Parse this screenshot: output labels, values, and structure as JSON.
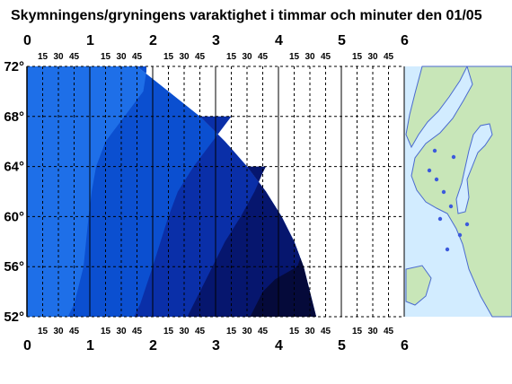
{
  "chart_data": {
    "type": "area",
    "title": "Skymningens/gryningens varaktighet i timmar och minuter den 01/05",
    "x_axis": {
      "range_hours": [
        0,
        6
      ],
      "hour_labels": [
        "0",
        "1",
        "2",
        "3",
        "4",
        "5",
        "6"
      ],
      "minute_labels": [
        "15",
        "30",
        "45"
      ]
    },
    "y_axis": {
      "range_lat": [
        52,
        72
      ],
      "labels": [
        "72°",
        "68°",
        "64°",
        "60°",
        "56°",
        "52°"
      ],
      "values": [
        72,
        68,
        64,
        60,
        56,
        52
      ]
    },
    "series": [
      {
        "color": "#1e6fe8",
        "points": [
          [
            52,
            0
          ],
          [
            53,
            0
          ],
          [
            56,
            0
          ],
          [
            60,
            0
          ],
          [
            64,
            0
          ],
          [
            68,
            0
          ],
          [
            70,
            0
          ],
          [
            72,
            0
          ]
        ]
      },
      {
        "color": "#0b4fd0",
        "points": [
          [
            52,
            0.65
          ],
          [
            53,
            0.75
          ],
          [
            56,
            0.9
          ],
          [
            60,
            0.98
          ],
          [
            62,
            1.03
          ],
          [
            64,
            1.1
          ],
          [
            66,
            1.25
          ],
          [
            68,
            1.55
          ],
          [
            70,
            1.85
          ],
          [
            71.6,
            1.9
          ],
          [
            72,
            1.9
          ]
        ]
      },
      {
        "color": "#0a2fa8",
        "points": [
          [
            52,
            1.7
          ],
          [
            53,
            1.8
          ],
          [
            56,
            2.0
          ],
          [
            60,
            2.25
          ],
          [
            62,
            2.4
          ],
          [
            64,
            2.65
          ],
          [
            66,
            2.95
          ],
          [
            67,
            3.1
          ],
          [
            68,
            3.25
          ]
        ]
      },
      {
        "color": "#06166e",
        "points": [
          [
            52,
            2.55
          ],
          [
            53,
            2.65
          ],
          [
            56,
            2.95
          ],
          [
            58,
            3.15
          ],
          [
            60,
            3.4
          ],
          [
            62,
            3.62
          ],
          [
            63.5,
            3.75
          ],
          [
            64,
            3.8
          ]
        ]
      },
      {
        "color": "#050a3a",
        "points": [
          [
            52,
            3.55
          ],
          [
            53,
            3.65
          ],
          [
            54,
            3.75
          ],
          [
            55,
            3.95
          ],
          [
            56,
            4.3
          ],
          [
            56.7,
            4.35
          ]
        ]
      }
    ],
    "outer_boundary_hours": [
      [
        52,
        4.6
      ],
      [
        53,
        4.55
      ],
      [
        56,
        4.4
      ],
      [
        58,
        4.25
      ],
      [
        60,
        4.05
      ],
      [
        62,
        3.8
      ],
      [
        64,
        3.5
      ],
      [
        66,
        3.15
      ],
      [
        68,
        2.75
      ],
      [
        70,
        2.25
      ],
      [
        71.6,
        1.85
      ],
      [
        72,
        1.75
      ]
    ],
    "grid": true
  },
  "map": {
    "sea_color": "#d2ecff",
    "land_color": "#c8e6b8",
    "lake_color": "#3c5adc",
    "description": "Map of Scandinavia"
  },
  "colors": {
    "accent": "#0b4fd0",
    "grid_dash": "#000000"
  }
}
